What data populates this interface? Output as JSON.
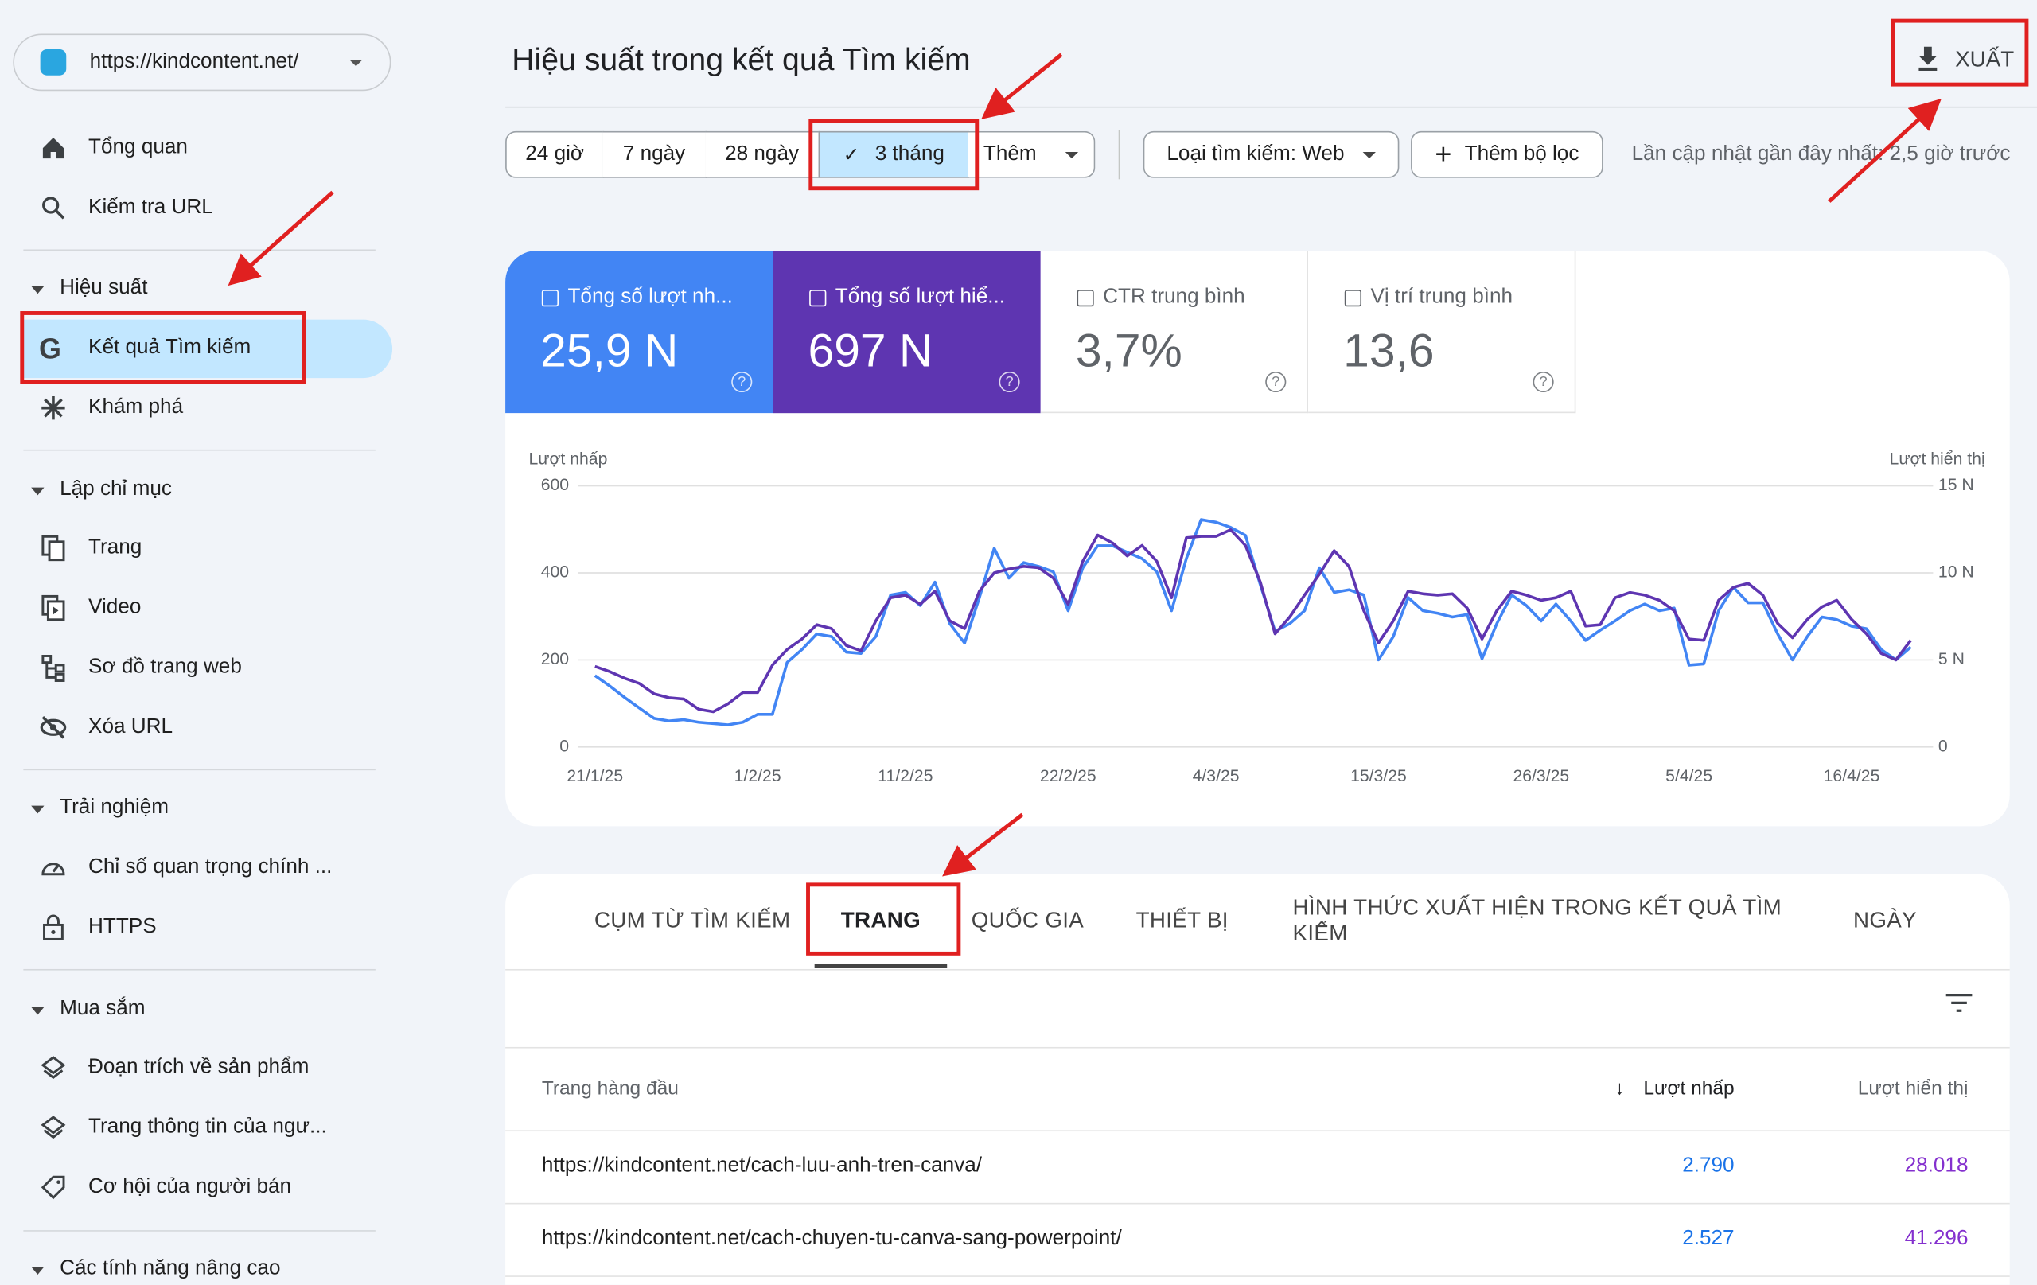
{
  "sidebar": {
    "property": "https://kindcontent.net/",
    "items": [
      "Tổng quan",
      "Kiểm tra URL"
    ],
    "sections": [
      {
        "title": "Hiệu suất",
        "items": [
          "Kết quả Tìm kiếm",
          "Khám phá"
        ]
      },
      {
        "title": "Lập chỉ mục",
        "items": [
          "Trang",
          "Video",
          "Sơ đồ trang web",
          "Xóa URL"
        ]
      },
      {
        "title": "Trải nghiệm",
        "items": [
          "Chỉ số quan trọng chính ...",
          "HTTPS"
        ]
      },
      {
        "title": "Mua sắm",
        "items": [
          "Đoạn trích về sản phẩm",
          "Trang thông tin của ngư...",
          "Cơ hội của người bán"
        ]
      },
      {
        "title": "Các tính năng nâng cao",
        "items": []
      }
    ]
  },
  "header": {
    "title": "Hiệu suất trong kết quả Tìm kiếm",
    "export": "XUẤT"
  },
  "filters": {
    "ranges": [
      "24 giờ",
      "7 ngày",
      "28 ngày",
      "3 tháng",
      "Thêm"
    ],
    "search_type": "Loại tìm kiếm: Web",
    "add_filter": "Thêm bộ lọc",
    "last_update": "Lần cập nhật gần đây nhất: 2,5 giờ trước"
  },
  "metrics": [
    {
      "label": "Tổng số lượt nh...",
      "value": "25,9 N"
    },
    {
      "label": "Tổng số lượt hiể...",
      "value": "697 N"
    },
    {
      "label": "CTR trung bình",
      "value": "3,7%"
    },
    {
      "label": "Vị trí trung bình",
      "value": "13,6"
    }
  ],
  "chart_data": {
    "type": "line",
    "y_label": "Lượt nhấp",
    "y2_label": "Lượt hiển thị",
    "categories": [
      "21/1/25",
      null,
      null,
      null,
      null,
      null,
      null,
      null,
      null,
      null,
      null,
      "1/2/25",
      null,
      null,
      null,
      null,
      null,
      null,
      null,
      null,
      null,
      "11/2/25",
      null,
      null,
      null,
      null,
      null,
      null,
      null,
      null,
      null,
      null,
      "22/2/25",
      null,
      null,
      null,
      null,
      null,
      null,
      null,
      null,
      null,
      "4/3/25",
      null,
      null,
      null,
      null,
      null,
      null,
      null,
      null,
      null,
      null,
      "15/3/25",
      null,
      null,
      null,
      null,
      null,
      null,
      null,
      null,
      null,
      null,
      "26/3/25",
      null,
      null,
      null,
      null,
      null,
      null,
      null,
      null,
      null,
      "5/4/25",
      null,
      null,
      null,
      null,
      null,
      null,
      null,
      null,
      null,
      null,
      "16/4/25",
      null,
      null,
      null,
      null
    ],
    "series": [
      {
        "color": "#5e35b1",
        "values": [
          185,
          173,
          158,
          146,
          122,
          113,
          110,
          87,
          81,
          99,
          125,
          125,
          188,
          224,
          248,
          281,
          272,
          233,
          221,
          290,
          343,
          349,
          328,
          358,
          290,
          272,
          358,
          400,
          409,
          415,
          412,
          388,
          328,
          427,
          487,
          469,
          439,
          463,
          427,
          343,
          481,
          484,
          484,
          499,
          463,
          379,
          260,
          299,
          349,
          397,
          451,
          415,
          313,
          239,
          290,
          358,
          352,
          349,
          352,
          319,
          248,
          313,
          358,
          349,
          337,
          343,
          358,
          278,
          281,
          343,
          355,
          349,
          337,
          313,
          248,
          245,
          337,
          367,
          376,
          349,
          284,
          251,
          293,
          322,
          337,
          293,
          260,
          215,
          200,
          245
        ]
      },
      {
        "color": "#4285f4",
        "axis": "y2",
        "values": [
          4100,
          3500,
          2840,
          2240,
          1640,
          1490,
          1570,
          1420,
          1340,
          1270,
          1420,
          1870,
          1870,
          4850,
          5600,
          6490,
          6340,
          5450,
          5370,
          6340,
          8730,
          8880,
          8130,
          9470,
          7090,
          5970,
          8580,
          11410,
          9700,
          10590,
          10370,
          10070,
          7830,
          10290,
          11560,
          11560,
          11190,
          10820,
          10070,
          7830,
          10820,
          13060,
          12910,
          12610,
          12160,
          9330,
          6640,
          7090,
          7830,
          10290,
          8880,
          9030,
          8730,
          5000,
          6340,
          8580,
          7830,
          7680,
          7460,
          7610,
          5070,
          7090,
          8730,
          8130,
          7240,
          8210,
          7240,
          6120,
          6710,
          7240,
          7830,
          8210,
          7830,
          7980,
          4700,
          4770,
          7830,
          9180,
          8280,
          8280,
          6490,
          5000,
          6340,
          7460,
          7310,
          6940,
          6790,
          5600,
          5000,
          5740
        ]
      }
    ],
    "ylim": [
      0,
      600
    ],
    "yticks": [
      0,
      200,
      400,
      600
    ],
    "y2lim": [
      0,
      15000
    ],
    "y2ticks": [
      0,
      {
        "value": 5000,
        "label": "5 N"
      },
      {
        "value": 10000,
        "label": "10 N"
      },
      {
        "value": 15000,
        "label": "15 N"
      }
    ],
    "grid": true
  },
  "tabs": [
    "CỤM TỪ TÌM KIẾM",
    "TRANG",
    "QUỐC GIA",
    "THIẾT BỊ",
    "HÌNH THỨC XUẤT HIỆN TRONG KẾT QUẢ TÌM KIẾM",
    "NGÀY"
  ],
  "table": {
    "header": [
      "Trang hàng đầu",
      "Lượt nhấp",
      "Lượt hiển thị"
    ],
    "rows": [
      [
        "https://kindcontent.net/cach-luu-anh-tren-canva/",
        "2.790",
        "28.018"
      ],
      [
        "https://kindcontent.net/cach-chuyen-tu-canva-sang-powerpoint/",
        "2.527",
        "41.296"
      ]
    ]
  }
}
